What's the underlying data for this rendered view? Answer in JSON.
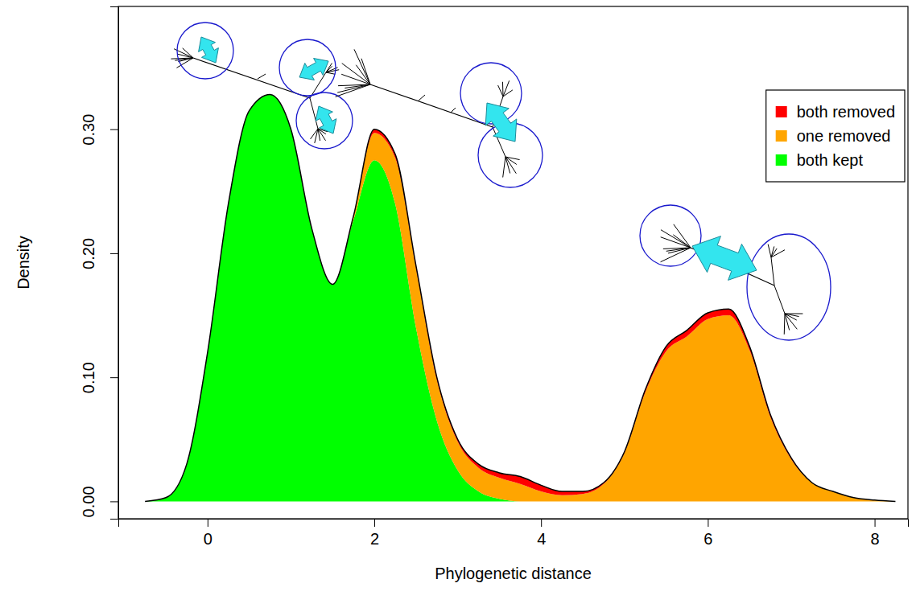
{
  "chart_data": {
    "type": "stacked_area",
    "x_label": "Phylogenetic distance",
    "y_label": "Density",
    "stacked": true,
    "legend": "top-right",
    "xlim": [
      -1.07,
      8.4
    ],
    "ylim": [
      -0.014,
      0.399
    ],
    "xticks": [
      0,
      2,
      4,
      6,
      8
    ],
    "yticks": [
      {
        "value": 0,
        "label": "0.00"
      },
      {
        "value": 0.1,
        "label": "0.10"
      },
      {
        "value": 0.2,
        "label": "0.20"
      },
      {
        "value": 0.3,
        "label": "0.30"
      }
    ],
    "x": [
      -0.75,
      -0.5,
      -0.25,
      0,
      0.25,
      0.5,
      0.75,
      1,
      1.25,
      1.5,
      1.75,
      2,
      2.25,
      2.5,
      2.75,
      3,
      3.25,
      3.5,
      3.75,
      4,
      4.25,
      4.5,
      4.75,
      5,
      5.25,
      5.5,
      5.75,
      6,
      6.25,
      6.5,
      6.75,
      7,
      7.25,
      7.5,
      7.75,
      8,
      8.25
    ],
    "series": [
      {
        "name": "both kept",
        "color": "#00ff00",
        "values": [
          0,
          0.003,
          0.03,
          0.12,
          0.24,
          0.315,
          0.328,
          0.3,
          0.22,
          0.175,
          0.227,
          0.275,
          0.24,
          0.14,
          0.065,
          0.025,
          0.008,
          0.002,
          0,
          0,
          0,
          0,
          0,
          0,
          0,
          0,
          0,
          0,
          0,
          0,
          0,
          0,
          0,
          0,
          0,
          0,
          0
        ]
      },
      {
        "name": "one removed",
        "color": "#ffa500",
        "values": [
          0,
          0,
          0,
          0,
          0,
          0,
          0,
          0,
          0,
          0,
          0.003,
          0.022,
          0.037,
          0.048,
          0.033,
          0.023,
          0.019,
          0.017,
          0.014,
          0.008,
          0.005,
          0.006,
          0.014,
          0.039,
          0.088,
          0.121,
          0.133,
          0.147,
          0.15,
          0.122,
          0.068,
          0.034,
          0.015,
          0.008,
          0.003,
          0.001,
          0
        ]
      },
      {
        "name": "both removed",
        "color": "#ff0000",
        "values": [
          0,
          0,
          0,
          0,
          0,
          0,
          0,
          0,
          0,
          0,
          0,
          0.003,
          0.003,
          0.002,
          0.002,
          0.002,
          0.003,
          0.004,
          0.006,
          0.005,
          0.003,
          0.002,
          0.001,
          0.001,
          0.002,
          0.004,
          0.005,
          0.005,
          0.005,
          0.003,
          0.002,
          0.001,
          0,
          0,
          0,
          0,
          0
        ]
      }
    ]
  }
}
